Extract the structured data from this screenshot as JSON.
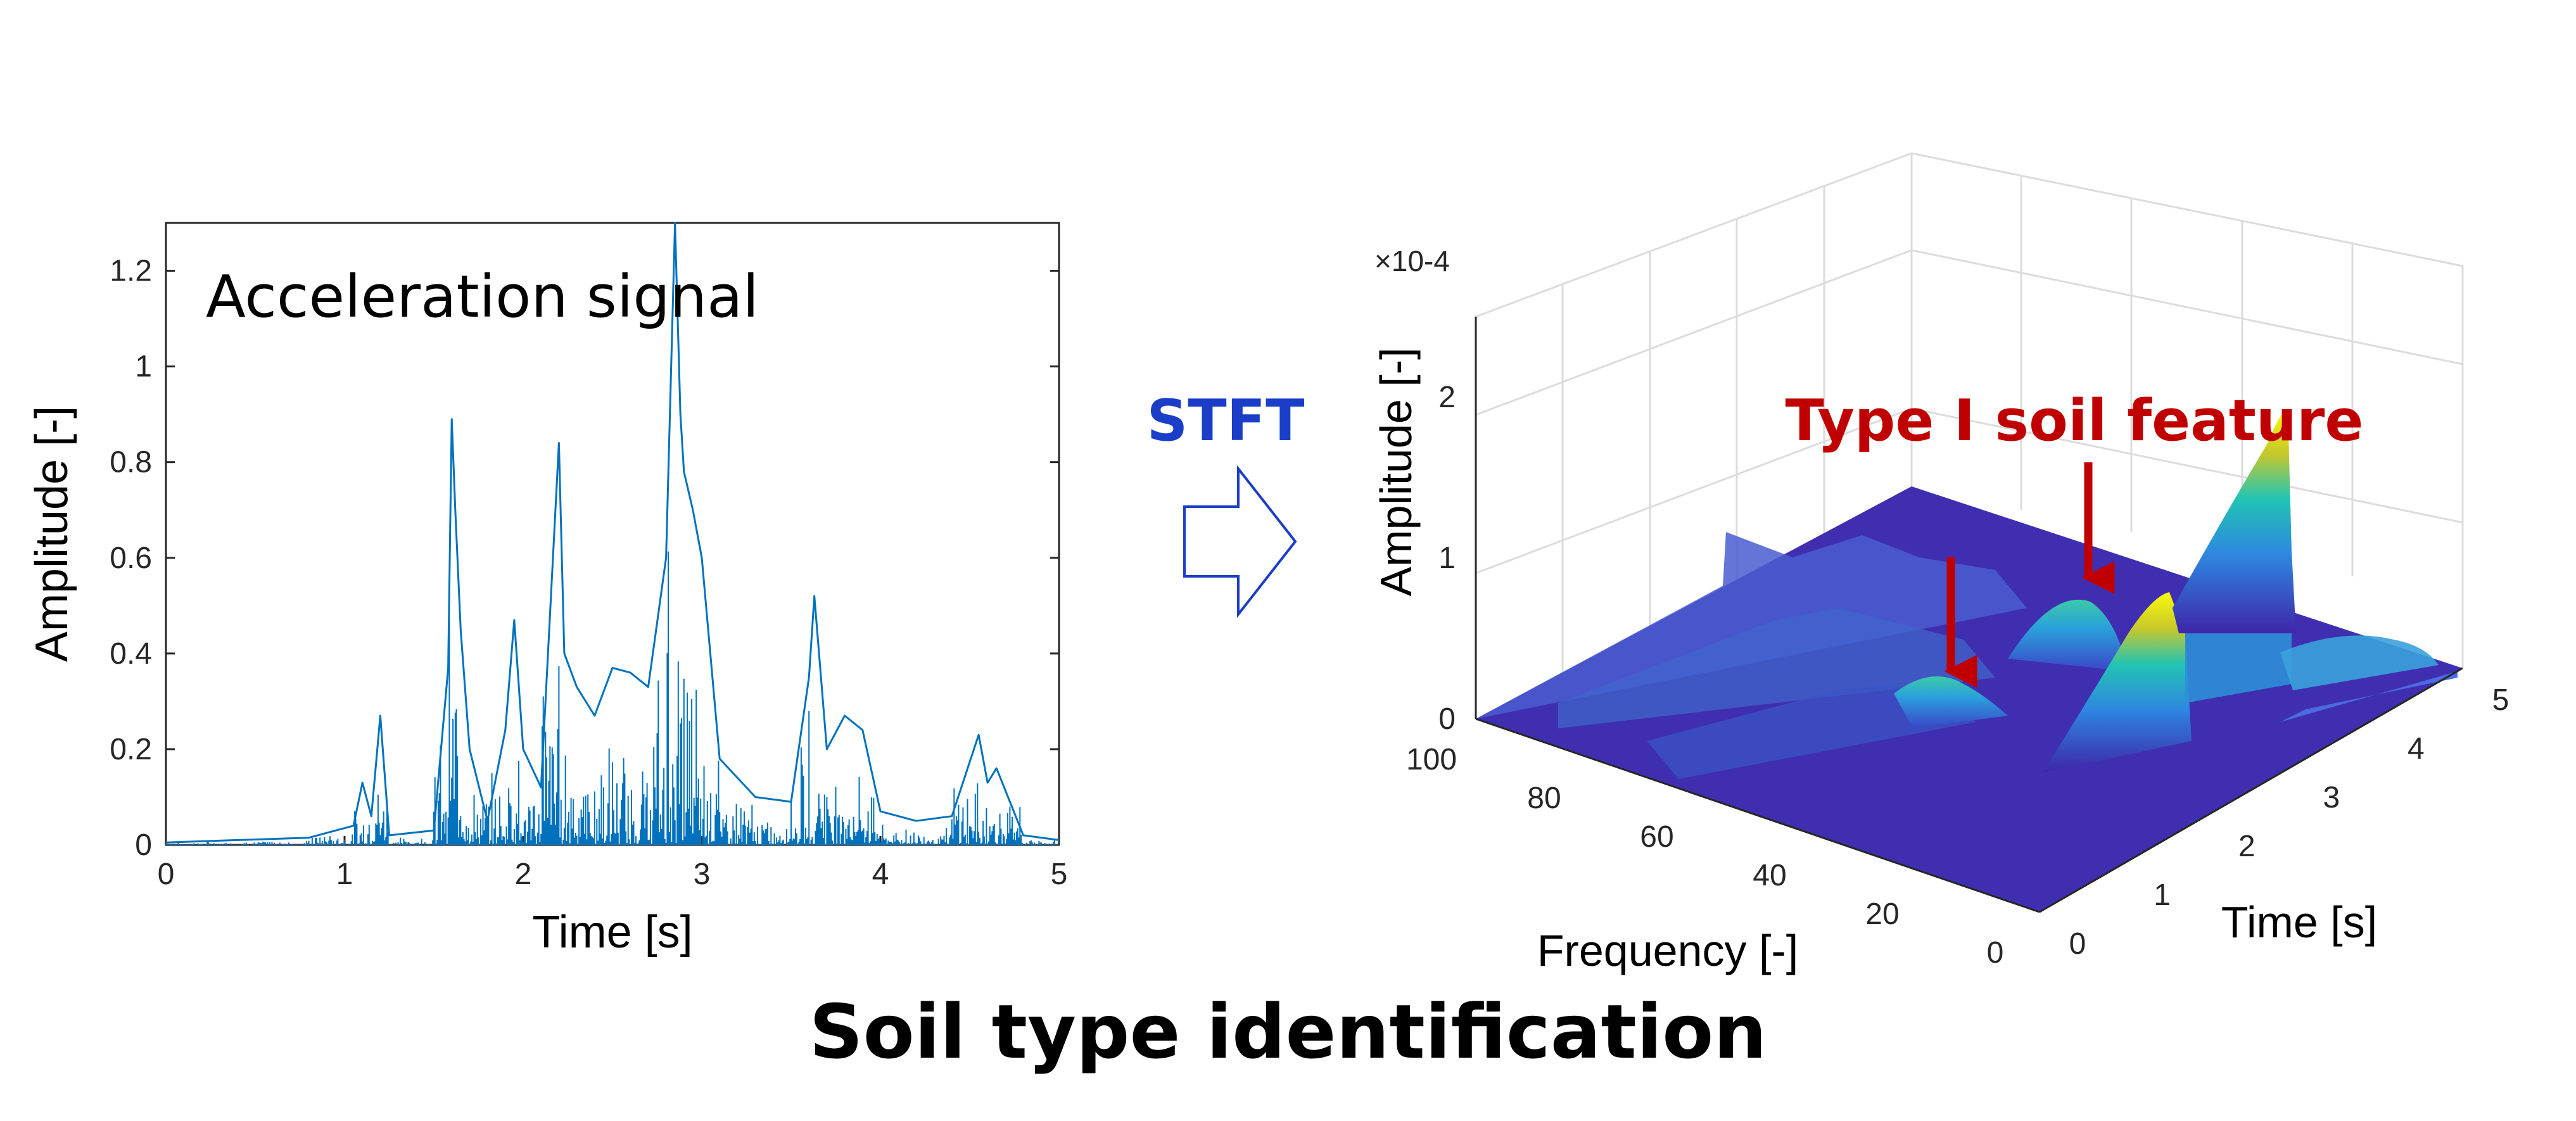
{
  "caption": "Soil type identification",
  "stft_label": "STFT",
  "colors": {
    "signal": "#0072BD",
    "axis": "#262626",
    "grid": "#dfdfdf",
    "stft_text": "#1a3ec7",
    "arrow_outline": "#1a3ec7",
    "feature_text": "#c00000",
    "surface_low": "#3e26a8",
    "surface_mid": "#1fb0c8",
    "surface_high": "#f9fb0e"
  },
  "chart_data": [
    {
      "type": "line",
      "title": "Acceleration signal",
      "xlabel": "Time [s]",
      "ylabel": "Amplitude [-]",
      "xlim": [
        0,
        5
      ],
      "ylim": [
        0,
        1.3
      ],
      "xticks": [
        "0",
        "1",
        "2",
        "3",
        "4",
        "5"
      ],
      "yticks": [
        "0",
        "0.2",
        "0.4",
        "0.6",
        "0.8",
        "1",
        "1.2"
      ],
      "series": [
        {
          "x": [
            0,
            0.4,
            0.8,
            1.05,
            1.1,
            1.15,
            1.2,
            1.25,
            1.5,
            1.58,
            1.6,
            1.62,
            1.65,
            1.7,
            1.8,
            1.9,
            1.95,
            2.0,
            2.1,
            2.2,
            2.23,
            2.3,
            2.4,
            2.5,
            2.6,
            2.7,
            2.8,
            2.85,
            2.88,
            2.9,
            2.95,
            3.0,
            3.1,
            3.3,
            3.5,
            3.6,
            3.63,
            3.7,
            3.8,
            3.9,
            4.0,
            4.2,
            4.4,
            4.55,
            4.6,
            4.65,
            4.8,
            5.0
          ],
          "y": [
            0.005,
            0.01,
            0.015,
            0.04,
            0.13,
            0.06,
            0.27,
            0.02,
            0.03,
            0.37,
            0.89,
            0.7,
            0.45,
            0.2,
            0.05,
            0.24,
            0.47,
            0.2,
            0.12,
            0.84,
            0.4,
            0.33,
            0.27,
            0.37,
            0.36,
            0.33,
            0.6,
            1.3,
            0.9,
            0.78,
            0.7,
            0.6,
            0.18,
            0.1,
            0.09,
            0.35,
            0.52,
            0.2,
            0.27,
            0.24,
            0.07,
            0.05,
            0.06,
            0.23,
            0.13,
            0.16,
            0.02,
            0.01
          ]
        }
      ]
    },
    {
      "type": "surface",
      "annotation": "Type Ⅰ soil feature",
      "xlabel": "Frequency [-]",
      "ylabel": "Time [s]",
      "zlabel": "Amplitude [-]",
      "z_multiplier": "×10-4",
      "xlim": [
        0,
        100
      ],
      "ylim": [
        0,
        5
      ],
      "zlim": [
        0,
        2.5
      ],
      "xticks": [
        "100",
        "80",
        "60",
        "40",
        "20",
        "0"
      ],
      "yticks": [
        "0",
        "1",
        "2",
        "3",
        "4",
        "5"
      ],
      "zticks": [
        "0",
        "1",
        "2"
      ],
      "peaks": [
        {
          "frequency": 5,
          "time": 3.0,
          "amplitude": 2.4
        },
        {
          "frequency": 10,
          "time": 1.0,
          "amplitude": 1.7
        },
        {
          "frequency": 45,
          "time": 2.8,
          "amplitude": 0.9
        },
        {
          "frequency": 45,
          "time": 1.3,
          "amplitude": 0.45
        }
      ]
    }
  ]
}
